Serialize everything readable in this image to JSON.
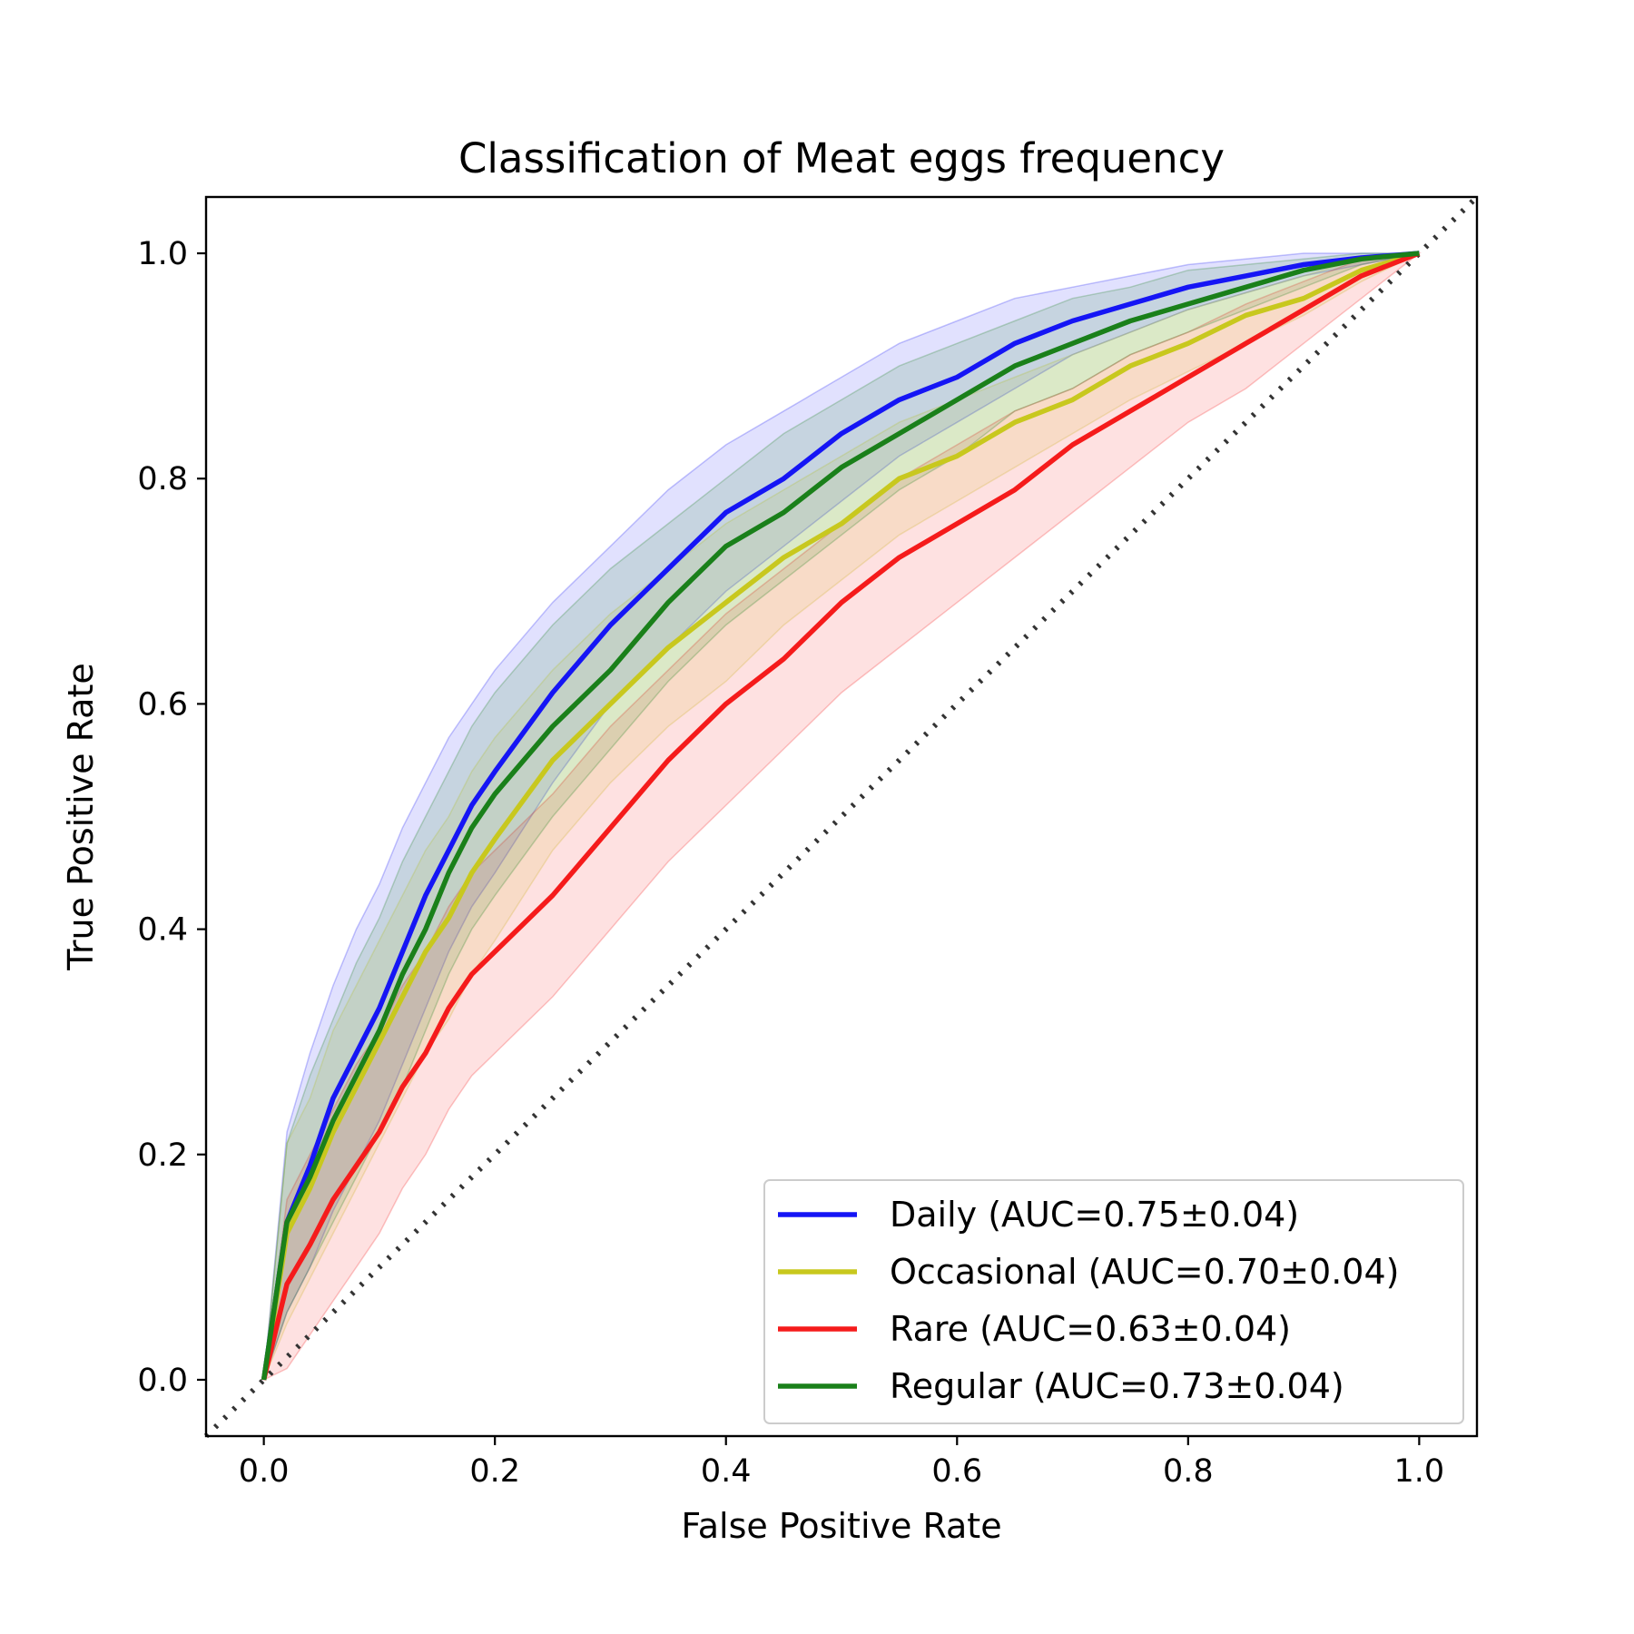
{
  "chart_data": {
    "type": "line",
    "title": "Classification of Meat eggs frequency",
    "xlabel": "False Positive Rate",
    "ylabel": "True Positive Rate",
    "xlim": [
      -0.05,
      1.05
    ],
    "ylim": [
      -0.05,
      1.05
    ],
    "xticks": [
      "0.0",
      "0.2",
      "0.4",
      "0.6",
      "0.8",
      "1.0"
    ],
    "yticks": [
      "0.0",
      "0.2",
      "0.4",
      "0.6",
      "0.8",
      "1.0"
    ],
    "grid": false,
    "legend_position": "bottom-right",
    "chance_line": {
      "x": [
        -0.05,
        1.05
      ],
      "y": [
        -0.05,
        1.05
      ],
      "style": "dotted",
      "color": "#333333"
    },
    "x": [
      0.0,
      0.02,
      0.04,
      0.06,
      0.08,
      0.1,
      0.12,
      0.14,
      0.16,
      0.18,
      0.2,
      0.25,
      0.3,
      0.35,
      0.4,
      0.45,
      0.5,
      0.55,
      0.6,
      0.65,
      0.7,
      0.75,
      0.8,
      0.85,
      0.9,
      0.95,
      1.0
    ],
    "series": [
      {
        "name": "Daily (AUC=0.75±0.04)",
        "color": "#1515f5",
        "y": [
          0.0,
          0.14,
          0.19,
          0.25,
          0.29,
          0.33,
          0.38,
          0.43,
          0.47,
          0.51,
          0.54,
          0.61,
          0.67,
          0.72,
          0.77,
          0.8,
          0.84,
          0.87,
          0.89,
          0.92,
          0.94,
          0.955,
          0.97,
          0.98,
          0.99,
          0.996,
          1.0
        ],
        "lower": [
          0.0,
          0.06,
          0.1,
          0.15,
          0.19,
          0.23,
          0.28,
          0.33,
          0.38,
          0.42,
          0.45,
          0.53,
          0.6,
          0.65,
          0.7,
          0.74,
          0.78,
          0.82,
          0.85,
          0.88,
          0.91,
          0.93,
          0.95,
          0.965,
          0.98,
          0.99,
          1.0
        ],
        "upper": [
          0.0,
          0.22,
          0.29,
          0.35,
          0.4,
          0.44,
          0.49,
          0.53,
          0.57,
          0.6,
          0.63,
          0.69,
          0.74,
          0.79,
          0.83,
          0.86,
          0.89,
          0.92,
          0.94,
          0.96,
          0.97,
          0.98,
          0.99,
          0.995,
          1.0,
          1.0,
          1.0
        ]
      },
      {
        "name": "Occasional (AUC=0.70±0.04)",
        "color": "#c8c81e",
        "y": [
          0.0,
          0.13,
          0.17,
          0.22,
          0.26,
          0.3,
          0.34,
          0.38,
          0.41,
          0.45,
          0.48,
          0.55,
          0.6,
          0.65,
          0.69,
          0.73,
          0.76,
          0.8,
          0.82,
          0.85,
          0.87,
          0.9,
          0.92,
          0.945,
          0.96,
          0.985,
          1.0
        ],
        "lower": [
          0.0,
          0.05,
          0.09,
          0.13,
          0.17,
          0.21,
          0.25,
          0.29,
          0.32,
          0.36,
          0.39,
          0.47,
          0.53,
          0.58,
          0.62,
          0.67,
          0.71,
          0.75,
          0.78,
          0.81,
          0.84,
          0.87,
          0.895,
          0.92,
          0.945,
          0.975,
          1.0
        ],
        "upper": [
          0.0,
          0.21,
          0.25,
          0.31,
          0.35,
          0.39,
          0.43,
          0.47,
          0.5,
          0.54,
          0.57,
          0.63,
          0.68,
          0.72,
          0.76,
          0.79,
          0.82,
          0.85,
          0.87,
          0.89,
          0.91,
          0.93,
          0.95,
          0.965,
          0.98,
          0.995,
          1.0
        ]
      },
      {
        "name": "Rare (AUC=0.63±0.04)",
        "color": "#f51b1b",
        "y": [
          0.0,
          0.085,
          0.12,
          0.16,
          0.19,
          0.22,
          0.26,
          0.29,
          0.33,
          0.36,
          0.38,
          0.43,
          0.49,
          0.55,
          0.6,
          0.64,
          0.69,
          0.73,
          0.76,
          0.79,
          0.83,
          0.86,
          0.89,
          0.92,
          0.95,
          0.98,
          1.0
        ],
        "lower": [
          0.0,
          0.01,
          0.04,
          0.07,
          0.1,
          0.13,
          0.17,
          0.2,
          0.24,
          0.27,
          0.29,
          0.34,
          0.4,
          0.46,
          0.51,
          0.56,
          0.61,
          0.65,
          0.69,
          0.73,
          0.77,
          0.81,
          0.85,
          0.88,
          0.92,
          0.96,
          1.0
        ],
        "upper": [
          0.0,
          0.16,
          0.2,
          0.24,
          0.28,
          0.31,
          0.35,
          0.38,
          0.42,
          0.45,
          0.47,
          0.52,
          0.58,
          0.63,
          0.68,
          0.72,
          0.76,
          0.8,
          0.83,
          0.86,
          0.88,
          0.91,
          0.93,
          0.955,
          0.975,
          0.995,
          1.0
        ]
      },
      {
        "name": "Regular (AUC=0.73±0.04)",
        "color": "#1a801a",
        "y": [
          0.0,
          0.14,
          0.18,
          0.23,
          0.27,
          0.31,
          0.36,
          0.4,
          0.45,
          0.49,
          0.52,
          0.58,
          0.63,
          0.69,
          0.74,
          0.77,
          0.81,
          0.84,
          0.87,
          0.9,
          0.92,
          0.94,
          0.955,
          0.97,
          0.985,
          0.995,
          1.0
        ],
        "lower": [
          0.0,
          0.06,
          0.1,
          0.14,
          0.18,
          0.22,
          0.26,
          0.31,
          0.36,
          0.4,
          0.43,
          0.5,
          0.56,
          0.62,
          0.67,
          0.71,
          0.75,
          0.79,
          0.82,
          0.86,
          0.88,
          0.91,
          0.93,
          0.95,
          0.97,
          0.99,
          1.0
        ],
        "upper": [
          0.0,
          0.21,
          0.27,
          0.32,
          0.37,
          0.41,
          0.46,
          0.5,
          0.54,
          0.58,
          0.61,
          0.67,
          0.72,
          0.76,
          0.8,
          0.84,
          0.87,
          0.9,
          0.92,
          0.94,
          0.96,
          0.97,
          0.985,
          0.99,
          0.995,
          1.0,
          1.0
        ]
      }
    ]
  }
}
